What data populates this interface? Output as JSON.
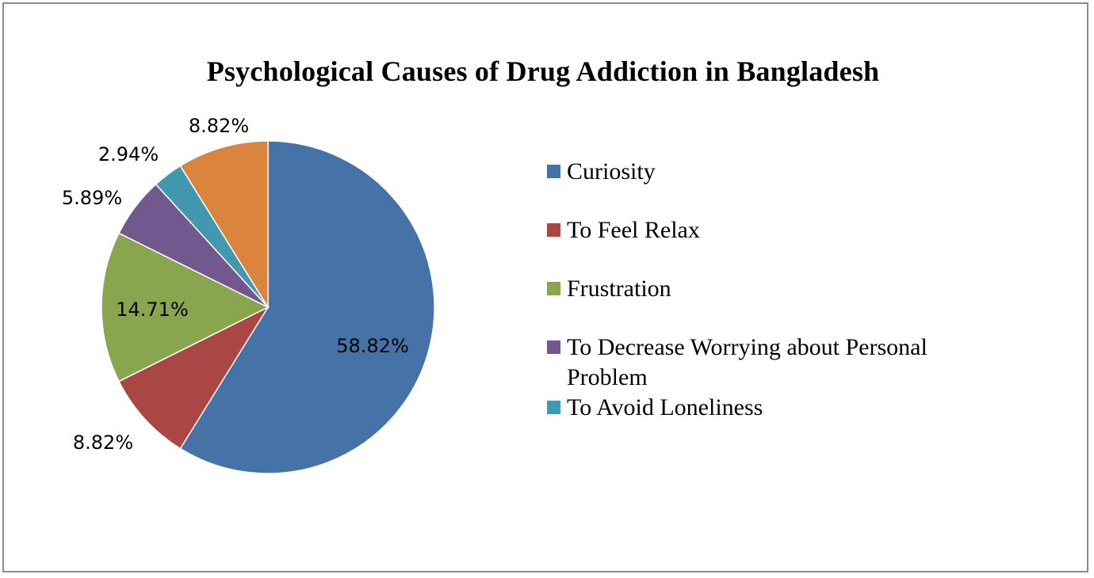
{
  "chart_data": {
    "type": "pie",
    "title": "Psychological  Causes of Drug Addiction  in Bangladesh",
    "slices": [
      {
        "label": "Curiosity",
        "value": 58.82,
        "display": "58.82%",
        "color": "#4572a7"
      },
      {
        "label": "To Feel Relax",
        "value": 8.82,
        "display": "8.82%",
        "color": "#aa4643"
      },
      {
        "label": "Frustration",
        "value": 14.71,
        "display": "14.71%",
        "color": "#89a54e"
      },
      {
        "label": "To Decrease Worrying about Personal Problem",
        "value": 5.89,
        "display": "5.89%",
        "color": "#71588f"
      },
      {
        "label": "To Avoid Loneliness",
        "value": 2.94,
        "display": "2.94%",
        "color": "#4198af"
      },
      {
        "label": "",
        "value": 8.82,
        "display": "8.82%",
        "color": "#db843d"
      }
    ],
    "legend_position": "right"
  }
}
